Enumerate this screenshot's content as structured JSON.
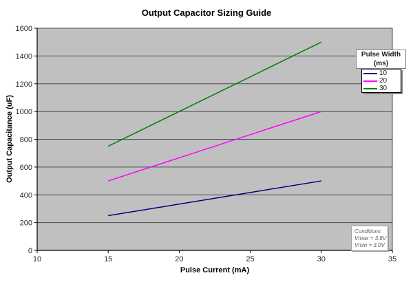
{
  "chart": {
    "legend": {
      "title_line1": "Pulse Width",
      "title_line2": "(ms)"
    },
    "colors": {
      "plot_bg": "#c0c0c0",
      "gridline": "#4a4a4a",
      "axis": "#000000",
      "tick_label": "#262626"
    }
  },
  "chart_data": {
    "type": "line",
    "title": "Output Capacitor Sizing Guide",
    "xlabel": "Pulse Current (mA)",
    "ylabel": "Output Capacitance (uF)",
    "xlim": [
      10,
      35
    ],
    "ylim": [
      0,
      1600
    ],
    "x_ticks": [
      10,
      15,
      20,
      25,
      30,
      35
    ],
    "y_ticks": [
      0,
      200,
      400,
      600,
      800,
      1000,
      1200,
      1400,
      1600
    ],
    "grid": "horizontal",
    "legend_title": "Pulse Width (ms)",
    "legend_position": "upper-right-inside",
    "series": [
      {
        "name": "10",
        "color": "#000080",
        "points": [
          [
            15,
            250
          ],
          [
            30,
            500
          ]
        ]
      },
      {
        "name": "20",
        "color": "#ff00ff",
        "points": [
          [
            15,
            500
          ],
          [
            30,
            1000
          ]
        ]
      },
      {
        "name": "30",
        "color": "#008000",
        "points": [
          [
            15,
            750
          ],
          [
            30,
            1500
          ]
        ]
      }
    ],
    "annotation": {
      "position": "bottom-right",
      "text": [
        "Conditions:",
        "Vmax = 3.6V",
        "Vmin = 3.0V"
      ]
    }
  }
}
